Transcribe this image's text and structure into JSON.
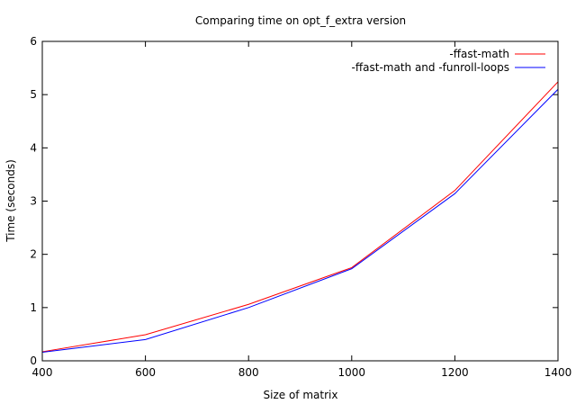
{
  "chart_data": {
    "type": "line",
    "title": "Comparing time on opt_f_extra version",
    "xlabel": "Size of matrix",
    "ylabel": "Time (seconds)",
    "xlim": [
      400,
      1400
    ],
    "ylim": [
      0,
      6
    ],
    "x_ticks": [
      "400",
      "600",
      "800",
      "1000",
      "1200",
      "1400"
    ],
    "y_ticks": [
      "0",
      "1",
      "2",
      "3",
      "4",
      "5",
      "6"
    ],
    "grid": false,
    "legend_position": "top-right",
    "x": [
      400,
      600,
      800,
      1000,
      1200,
      1400
    ],
    "series": [
      {
        "name": "-ffast-math",
        "color": "#ff0000",
        "values": [
          0.17,
          0.49,
          1.06,
          1.75,
          3.2,
          5.24
        ]
      },
      {
        "name": "-ffast-math and -funroll-loops",
        "color": "#0000ff",
        "values": [
          0.16,
          0.4,
          1.0,
          1.73,
          3.14,
          5.1
        ]
      }
    ]
  }
}
